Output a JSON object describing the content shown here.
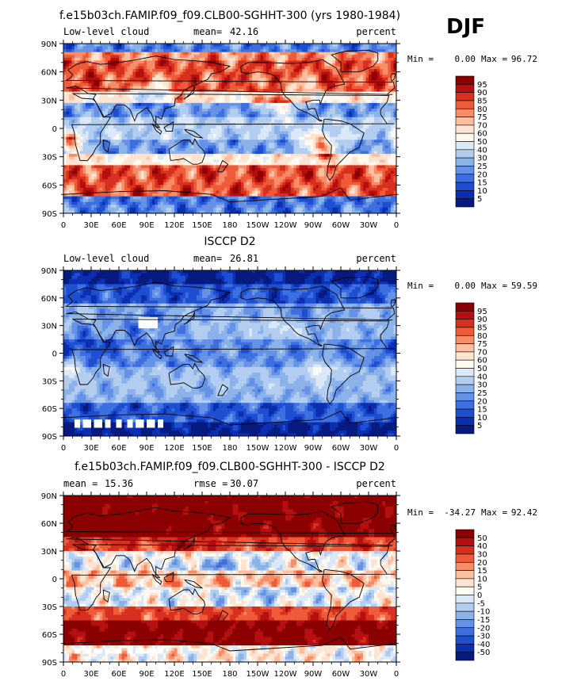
{
  "season": "DJF",
  "chart_data": [
    {
      "type": "heatmap",
      "title": "f.e15b03ch.FAMIP.f09_f09.CLB00-SGHHT-300 (yrs 1980-1984)",
      "variable": "Low-level cloud",
      "stat_label": "mean=",
      "stat_value": "42.16",
      "units": "percent",
      "min_label": "Min =",
      "min_value": "0.00",
      "max_label": "Max =",
      "max_value": "96.72",
      "pattern": "model",
      "xlim": [
        0,
        360
      ],
      "ylim": [
        -90,
        90
      ],
      "xticks": [
        "0",
        "30E",
        "60E",
        "90E",
        "120E",
        "150E",
        "180",
        "150W",
        "120W",
        "90W",
        "60W",
        "30W",
        "0"
      ],
      "yticks": [
        "90N",
        "60N",
        "30N",
        "0",
        "30S",
        "60S",
        "90S"
      ],
      "legend": {
        "labels": [
          "95",
          "90",
          "85",
          "80",
          "75",
          "70",
          "60",
          "50",
          "40",
          "30",
          "25",
          "20",
          "15",
          "10",
          "5"
        ],
        "colors": [
          "#8b0000",
          "#b50f0f",
          "#d7301f",
          "#ef5a38",
          "#f78c68",
          "#fcbf9f",
          "#fde4d2",
          "#fffaf0",
          "#dbe8f7",
          "#b2cdef",
          "#8cb2ea",
          "#6592e6",
          "#3e6fe0",
          "#1e4fd0",
          "#0c2fb2",
          "#071a80"
        ]
      }
    },
    {
      "type": "heatmap",
      "title": "ISCCP D2",
      "variable": "Low-level cloud",
      "stat_label": "mean=",
      "stat_value": "26.81",
      "units": "percent",
      "min_label": "Min =",
      "min_value": "0.00",
      "max_label": "Max =",
      "max_value": "59.59",
      "pattern": "obs",
      "xlim": [
        0,
        360
      ],
      "ylim": [
        -90,
        90
      ],
      "xticks": [
        "0",
        "30E",
        "60E",
        "90E",
        "120E",
        "150E",
        "180",
        "150W",
        "120W",
        "90W",
        "60W",
        "30W",
        "0"
      ],
      "yticks": [
        "90N",
        "60N",
        "30N",
        "0",
        "30S",
        "60S",
        "90S"
      ],
      "legend": {
        "labels": [
          "95",
          "90",
          "85",
          "80",
          "75",
          "70",
          "60",
          "50",
          "40",
          "30",
          "25",
          "20",
          "15",
          "10",
          "5"
        ],
        "colors": [
          "#8b0000",
          "#b50f0f",
          "#d7301f",
          "#ef5a38",
          "#f78c68",
          "#fcbf9f",
          "#fde4d2",
          "#fffaf0",
          "#dbe8f7",
          "#b2cdef",
          "#8cb2ea",
          "#6592e6",
          "#3e6fe0",
          "#1e4fd0",
          "#0c2fb2",
          "#071a80"
        ]
      }
    },
    {
      "type": "heatmap",
      "title": "f.e15b03ch.FAMIP.f09_f09.CLB00-SGHHT-300 - ISCCP D2",
      "variable": "",
      "stat_label": "mean =",
      "stat_value": "15.36",
      "stat2_label": "rmse =",
      "stat2_value": "30.07",
      "units": "percent",
      "min_label": "Min =",
      "min_value": "-34.27",
      "max_label": "Max =",
      "max_value": "92.42",
      "pattern": "diff",
      "xlim": [
        0,
        360
      ],
      "ylim": [
        -90,
        90
      ],
      "xticks": [
        "0",
        "30E",
        "60E",
        "90E",
        "120E",
        "150E",
        "180",
        "150W",
        "120W",
        "90W",
        "60W",
        "30W",
        "0"
      ],
      "yticks": [
        "90N",
        "60N",
        "30N",
        "0",
        "30S",
        "60S",
        "90S"
      ],
      "legend": {
        "labels": [
          "50",
          "40",
          "30",
          "20",
          "15",
          "10",
          "5",
          "0",
          "-5",
          "-10",
          "-15",
          "-20",
          "-30",
          "-40",
          "-50"
        ],
        "colors": [
          "#8b0000",
          "#b50f0f",
          "#d7301f",
          "#ef5a38",
          "#f78c68",
          "#fcbf9f",
          "#fde4d2",
          "#fffaf0",
          "#dbe8f7",
          "#b2cdef",
          "#8cb2ea",
          "#6592e6",
          "#3e6fe0",
          "#1e4fd0",
          "#0c2fb2",
          "#071a80"
        ]
      }
    }
  ]
}
